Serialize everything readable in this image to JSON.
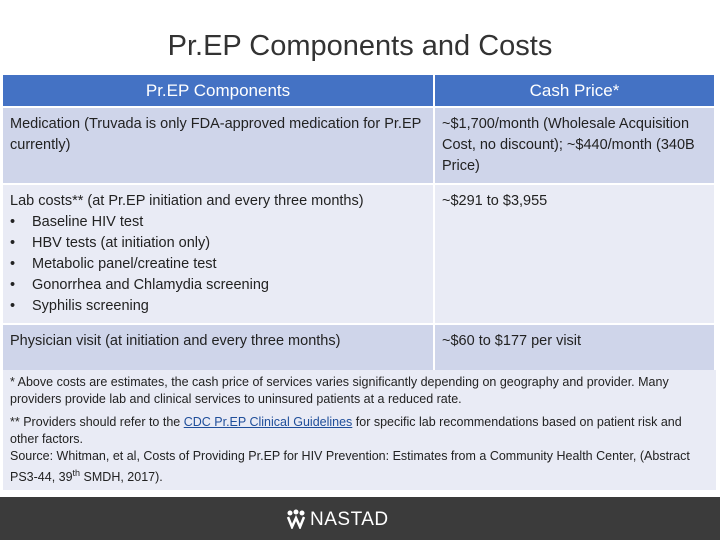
{
  "title": "Pr.EP Components and Costs",
  "table": {
    "header": [
      "Pr.EP Components",
      "Cash Price*"
    ],
    "rows": [
      {
        "component": "Medication (Truvada is only FDA-approved medication for Pr.EP currently)",
        "items": [],
        "price": "~$1,700/month (Wholesale Acquisition Cost, no discount); ~$440/month (340B Price)"
      },
      {
        "component": "Lab costs** (at Pr.EP initiation and every three months)",
        "items": [
          "Baseline HIV test",
          "HBV tests (at initiation only)",
          "Metabolic panel/creatine test",
          "Gonorrhea and Chlamydia screening",
          "Syphilis screening"
        ],
        "price": "~$291 to $3,955"
      },
      {
        "component": "Physician visit (at initiation and every three months)",
        "items": [],
        "price": "~$60 to $177 per visit"
      }
    ]
  },
  "notes": {
    "estimate": "* Above costs are estimates, the cash price of services varies significantly depending on geography and provider. Many providers provide lab and clinical services to uninsured patients at a reduced rate.",
    "guidelines_before": "** Providers should refer to the",
    "guidelines_link": "CDC Pr.EP Clinical Guidelines",
    "guidelines_after": "for specific lab recommendations based on patient risk and other factors.",
    "source_before": "Source: Whitman, et al, Costs of Providing Pr.EP for HIV Prevention: Estimates from a Community Health Center, (Abstract PS3-44, 39",
    "source_sup": "th",
    "source_after": "SMDH, 2017)."
  },
  "footer": {
    "logo": "NASTAD"
  }
}
